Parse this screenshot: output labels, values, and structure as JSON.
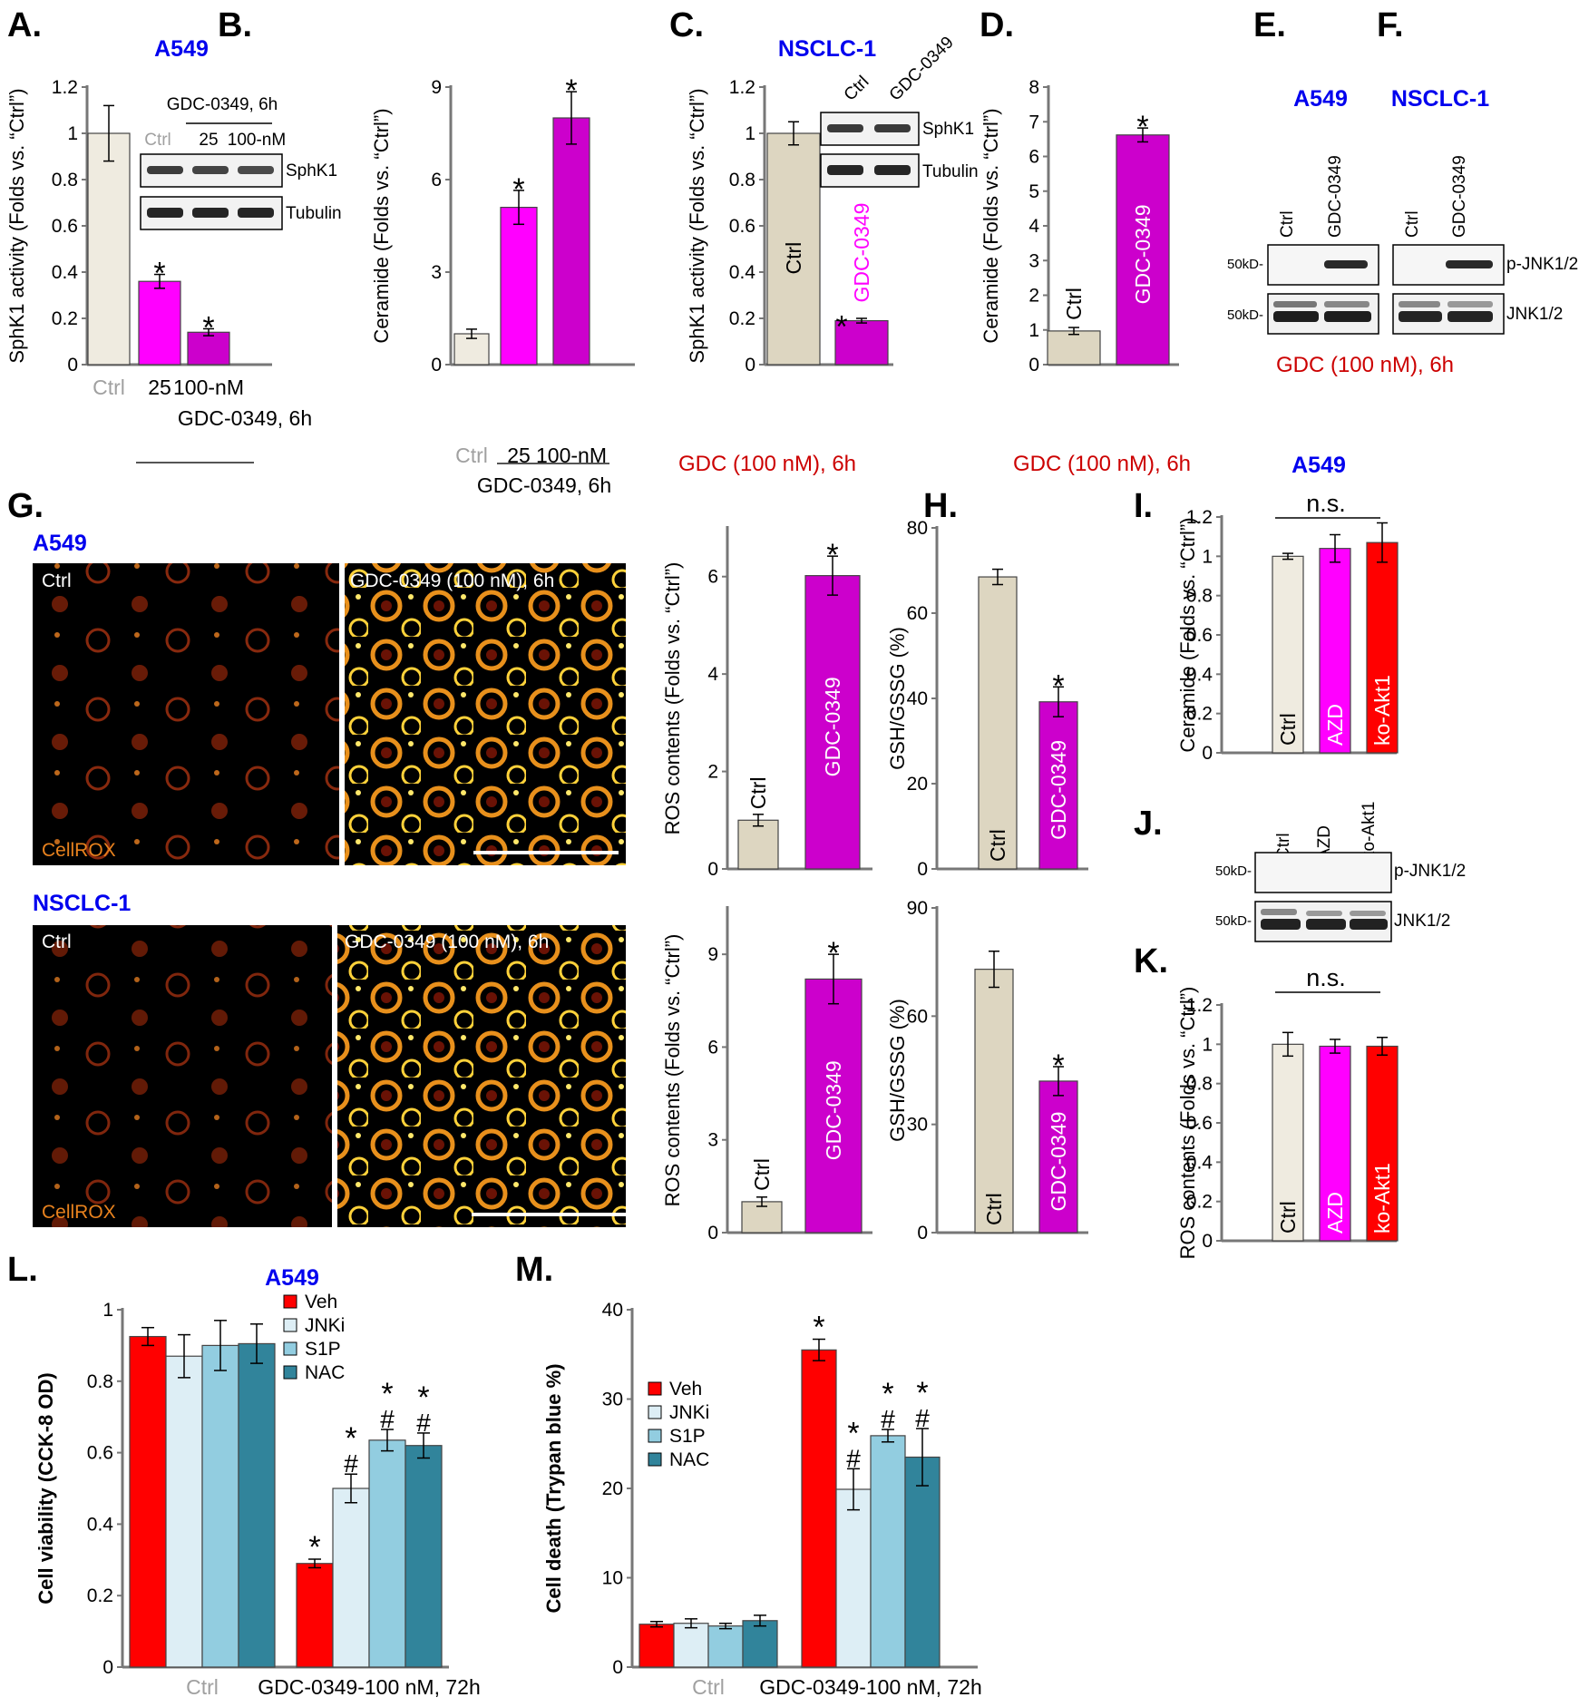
{
  "colors": {
    "ctrl": "#efebe0",
    "ctrl_beige": "#ddd6c1",
    "magenta": "#ff00ff",
    "purple": "#cc00cc",
    "red": "#ff0000",
    "jnki": "#ddeef5",
    "s1p": "#92cde0",
    "nac": "#31849b",
    "cell_label": "#0000ee",
    "treatment": "#cc0000",
    "cellrox": "#e8821e"
  },
  "panels": {
    "A": "A.",
    "B": "B.",
    "C": "C.",
    "D": "D.",
    "E": "E.",
    "F": "F.",
    "G": "G.",
    "H": "H.",
    "I": "I.",
    "J": "J.",
    "K": "K.",
    "L": "L.",
    "M": "M."
  },
  "cells": {
    "a549": "A549",
    "nsclc1": "NSCLC-1"
  },
  "common": {
    "ctrl": "Ctrl",
    "gdc": "GDC-0349",
    "dose25": "25",
    "dose100": "100-nM",
    "gdc_6h": "GDC-0349, 6h",
    "gdc_100_6h": "GDC (100 nM), 6h",
    "gdc_img_label": "GDC-0349 (100 nM), 6h",
    "cellrox": "CellROX",
    "star": "*",
    "hash": "#",
    "ns": "n.s.",
    "azd": "AZD",
    "koakt1": "ko-Akt1"
  },
  "blots": {
    "sphk1": "SphK1",
    "tubulin": "Tubulin",
    "pjnk": "p-JNK1/2",
    "jnk": "JNK1/2",
    "kd50": "50kD-",
    "header_a": "GDC-0349, 6h"
  },
  "chart_data": [
    {
      "id": "A",
      "type": "bar",
      "title": "A549",
      "ylabel": "SphK1 activity (Folds vs. “Ctrl”)",
      "ylim": [
        0,
        1.2
      ],
      "yticks": [
        "0",
        "0.2",
        "0.4",
        "0.6",
        "0.8",
        "1",
        "1.2"
      ],
      "categories": [
        "Ctrl",
        "25",
        "100-nM"
      ],
      "xlabel": "GDC-0349, 6h",
      "values": [
        1.0,
        0.36,
        0.14
      ],
      "errors": [
        0.12,
        0.03,
        0.015
      ]
    },
    {
      "id": "B",
      "type": "bar",
      "title": "",
      "ylabel": "Ceramide (Folds vs. “Ctrl”)",
      "ylim": [
        0,
        9
      ],
      "yticks": [
        "0",
        "3",
        "6",
        "9"
      ],
      "categories": [
        "Ctrl",
        "25",
        "100-nM"
      ],
      "xlabel": "GDC-0349, 6h",
      "values": [
        1.0,
        5.1,
        8.0
      ],
      "errors": [
        0.15,
        0.55,
        0.85
      ]
    },
    {
      "id": "C",
      "type": "bar",
      "title": "NSCLC-1",
      "ylabel": "SphK1 activity (Folds vs. “Ctrl”)",
      "ylim": [
        0,
        1.2
      ],
      "yticks": [
        "0",
        "0.2",
        "0.4",
        "0.6",
        "0.8",
        "1",
        "1.2"
      ],
      "categories": [
        "Ctrl",
        "GDC-0349"
      ],
      "xlabel": "GDC (100 nM), 6h",
      "values": [
        1.0,
        0.19
      ],
      "errors": [
        0.05,
        0.01
      ]
    },
    {
      "id": "D",
      "type": "bar",
      "title": "",
      "ylabel": "Ceramide (Folds vs. “Ctrl”)",
      "ylim": [
        0,
        8
      ],
      "yticks": [
        "0",
        "1",
        "2",
        "3",
        "4",
        "5",
        "6",
        "7",
        "8"
      ],
      "categories": [
        "Ctrl",
        "GDC-0349"
      ],
      "xlabel": "GDC (100 nM), 6h",
      "values": [
        0.97,
        6.62
      ],
      "errors": [
        0.1,
        0.2
      ]
    },
    {
      "id": "G1",
      "type": "bar",
      "title": "A549",
      "ylabel": "ROS contents (Folds vs. “Ctrl”)",
      "ylim": [
        0,
        7
      ],
      "yticks": [
        "0",
        "2",
        "4",
        "6"
      ],
      "categories": [
        "Ctrl",
        "GDC-0349"
      ],
      "values": [
        1.0,
        6.02
      ],
      "errors": [
        0.12,
        0.4
      ]
    },
    {
      "id": "G2",
      "type": "bar",
      "title": "NSCLC-1",
      "ylabel": "ROS contents (Folds vs. “Ctrl”)",
      "ylim": [
        0,
        10.5
      ],
      "yticks": [
        "0",
        "3",
        "6",
        "9"
      ],
      "categories": [
        "Ctrl",
        "GDC-0349"
      ],
      "values": [
        1.0,
        8.2
      ],
      "errors": [
        0.15,
        0.8
      ]
    },
    {
      "id": "H1",
      "type": "bar",
      "title": "",
      "ylabel": "GSH/GSSG (%)",
      "ylim": [
        0,
        80
      ],
      "yticks": [
        "0",
        "20",
        "40",
        "60",
        "80"
      ],
      "categories": [
        "Ctrl",
        "GDC-0349"
      ],
      "values": [
        68.5,
        39.2
      ],
      "errors": [
        1.8,
        3.5
      ]
    },
    {
      "id": "H2",
      "type": "bar",
      "title": "",
      "ylabel": "GSH/GSSG (%)",
      "ylim": [
        0,
        90
      ],
      "yticks": [
        "0",
        "30",
        "60",
        "90"
      ],
      "categories": [
        "Ctrl",
        "GDC-0349"
      ],
      "values": [
        73.0,
        42.0
      ],
      "errors": [
        5.0,
        4.0
      ]
    },
    {
      "id": "I",
      "type": "bar",
      "title": "A549",
      "ylabel": "Ceramide (Folds vs. “Ctrl”)",
      "ylim": [
        0,
        1.2
      ],
      "yticks": [
        "0",
        "0.2",
        "0.4",
        "0.6",
        "0.8",
        "1",
        "1.2"
      ],
      "categories": [
        "Ctrl",
        "AZD",
        "ko-Akt1"
      ],
      "values": [
        1.0,
        1.04,
        1.07
      ],
      "errors": [
        0.015,
        0.07,
        0.1
      ]
    },
    {
      "id": "K",
      "type": "bar",
      "title": "",
      "ylabel": "ROS contents (Folds vs. “Ctrl”)",
      "ylim": [
        0,
        1.2
      ],
      "yticks": [
        "0",
        "0.2",
        "0.4",
        "0.6",
        "0.8",
        "1",
        "1.2"
      ],
      "categories": [
        "Ctrl",
        "AZD",
        "ko-Akt1"
      ],
      "values": [
        1.0,
        0.99,
        0.99
      ],
      "errors": [
        0.06,
        0.035,
        0.045
      ]
    },
    {
      "id": "L",
      "type": "bar",
      "title": "A549",
      "ylabel": "Cell viability (CCK-8 OD)",
      "ylim": [
        0,
        1
      ],
      "yticks": [
        "0",
        "0.2",
        "0.4",
        "0.6",
        "0.8",
        "1"
      ],
      "categories": [
        "Ctrl",
        "GDC-0349-100 nM, 72h"
      ],
      "legend": [
        "Veh",
        "JNKi",
        "S1P",
        "NAC"
      ],
      "series": [
        {
          "name": "Veh",
          "values": [
            0.925,
            0.29
          ],
          "errors": [
            0.025,
            0.012
          ]
        },
        {
          "name": "JNKi",
          "values": [
            0.87,
            0.5
          ],
          "errors": [
            0.06,
            0.04
          ]
        },
        {
          "name": "S1P",
          "values": [
            0.9,
            0.635
          ],
          "errors": [
            0.07,
            0.03
          ]
        },
        {
          "name": "NAC",
          "values": [
            0.905,
            0.62
          ],
          "errors": [
            0.055,
            0.035
          ]
        }
      ]
    },
    {
      "id": "M",
      "type": "bar",
      "title": "",
      "ylabel": "Cell death (Trypan blue %)",
      "ylim": [
        0,
        40
      ],
      "yticks": [
        "0",
        "10",
        "20",
        "30",
        "40"
      ],
      "categories": [
        "Ctrl",
        "GDC-0349-100 nM, 72h"
      ],
      "legend": [
        "Veh",
        "JNKi",
        "S1P",
        "NAC"
      ],
      "series": [
        {
          "name": "Veh",
          "values": [
            4.8,
            35.5
          ],
          "errors": [
            0.3,
            1.2
          ]
        },
        {
          "name": "JNKi",
          "values": [
            4.9,
            19.9
          ],
          "errors": [
            0.5,
            2.3
          ]
        },
        {
          "name": "S1P",
          "values": [
            4.6,
            25.9
          ],
          "errors": [
            0.3,
            0.7
          ]
        },
        {
          "name": "NAC",
          "values": [
            5.2,
            23.5
          ],
          "errors": [
            0.6,
            3.2
          ]
        }
      ]
    }
  ]
}
